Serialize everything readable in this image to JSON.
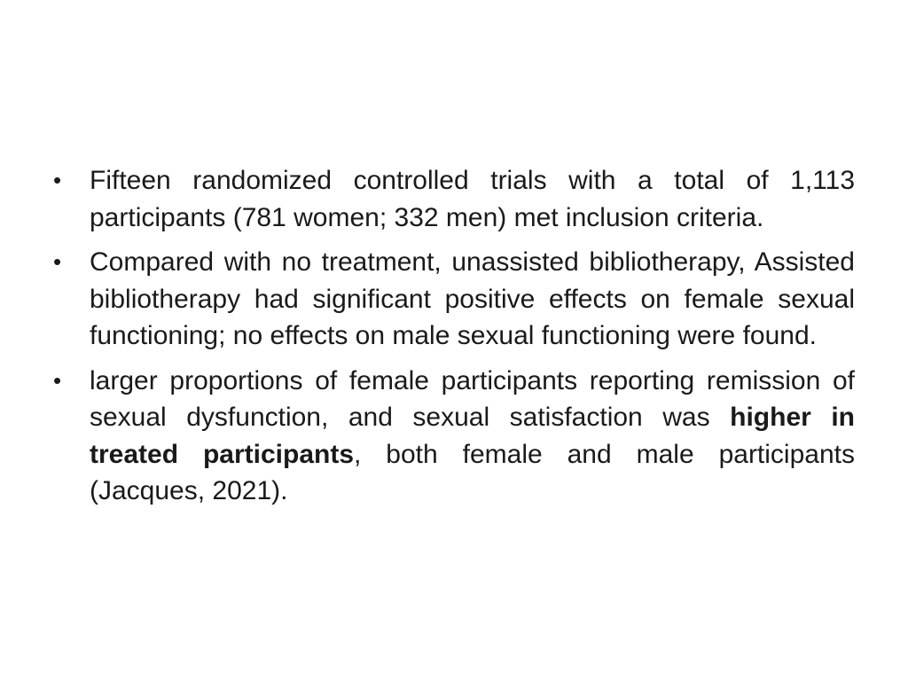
{
  "bullet_symbol": "•",
  "bullets": [
    {
      "text": "Fifteen randomized controlled trials with a total of 1,113 participants (781 women; 332 men) met inclusion criteria."
    },
    {
      "text": "Compared with no treatment, unassisted bibliotherapy, Assisted bibliotherapy had significant positive effects on female sexual functioning; no effects on male sexual functioning were found."
    },
    {
      "before": "larger proportions of female participants reporting remission of sexual dysfunction, and sexual satisfaction was ",
      "bold": "higher in treated participants",
      "after": ", both female and male participants (Jacques, 2021)."
    }
  ]
}
